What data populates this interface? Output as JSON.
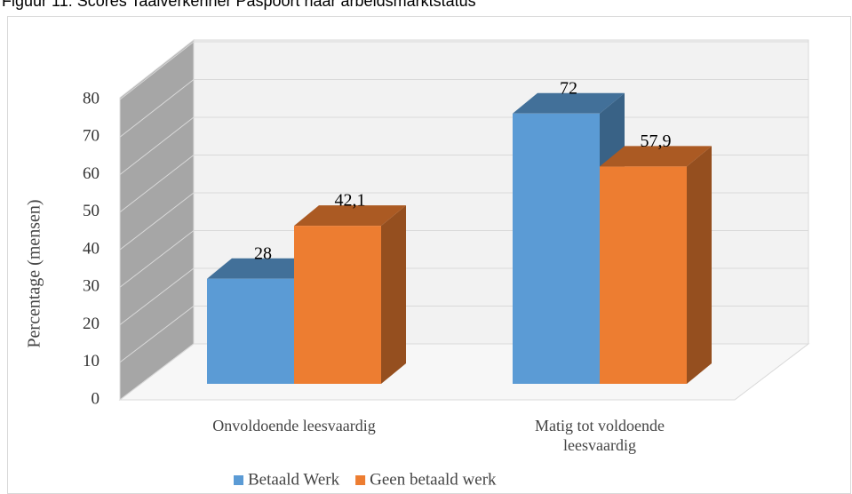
{
  "chart_data": {
    "type": "bar3d",
    "title": "Figuur 11: Scores Taalverkenner Paspoort naar arbeidsmarktstatus",
    "y_label": "Percentage (mensen)",
    "categories": [
      "Onvoldoende leesvaardig",
      "Matig tot voldoende leesvaardig"
    ],
    "series": [
      {
        "name": "Betaald Werk",
        "color": "#5b9bd5",
        "values": [
          28,
          72
        ],
        "value_labels": [
          "28",
          "72"
        ]
      },
      {
        "name": "Geen betaald werk",
        "color": "#ed7d31",
        "values": [
          42.1,
          57.9
        ],
        "value_labels": [
          "42,1",
          "57,9"
        ]
      }
    ],
    "ylim": [
      0,
      80
    ],
    "yticks": [
      0,
      10,
      20,
      30,
      40,
      50,
      60,
      70,
      80
    ],
    "grid": true,
    "legend": "bottom"
  }
}
